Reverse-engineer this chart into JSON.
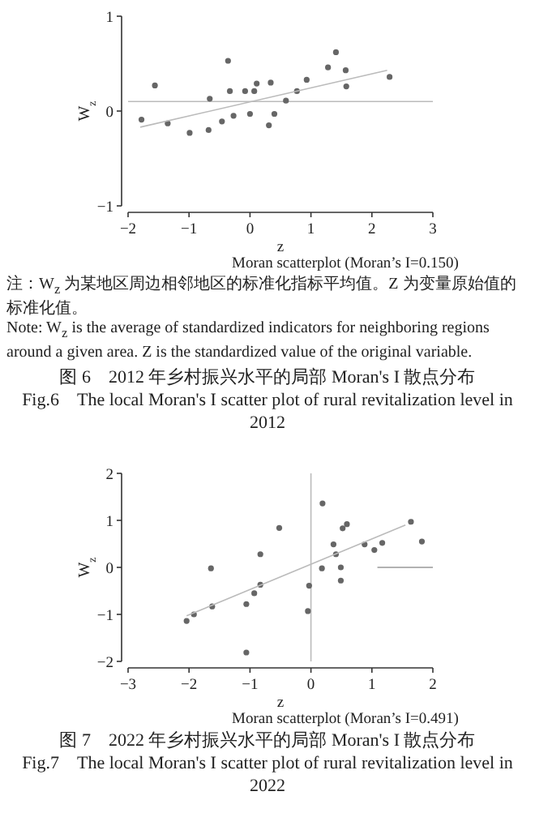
{
  "chart_data": [
    {
      "type": "scatter",
      "title": "图 6　2012 年乡村振兴水平的局部 Moran's I 散点分布",
      "subtitle": "Fig.6　The local Moran's I scatter plot of rural revitalization level in 2012",
      "xlabel": "z",
      "ylabel": "W$_{z}$",
      "xlim": [
        -2,
        3
      ],
      "ylim": [
        -1,
        1
      ],
      "xticks": [
        -2,
        -1,
        0,
        1,
        2,
        3
      ],
      "yticks": [
        -1,
        0,
        1
      ],
      "marker": "circle",
      "annotations": [
        "Moran scatterplot (Moran’s I=0.150)",
        "注：W$_{z}$ 为某地区周边相邻地区的标准化指标平均值。Z 为变量原始值的标准化值。",
        "Note: W$_{z}$ is the average of standardized indicators for neighboring regions around a given area. Z is the standardized value of the original variable."
      ],
      "ref_lines": [
        {
          "axis": "y",
          "value": 0.1,
          "color": "#bbbbbb"
        }
      ],
      "series": [
        {
          "color": "#666666",
          "x": [
            -1.78,
            -1.35,
            -0.99,
            -0.68,
            -0.46,
            -0.27,
            0.0,
            0.4,
            0.31,
            -1.56,
            -0.36,
            -0.66,
            -0.33,
            -0.08,
            0.07,
            0.11,
            0.34,
            0.59,
            0.77,
            0.93,
            1.41,
            1.28,
            1.57,
            1.58,
            2.29
          ],
          "values": [
            -0.09,
            -0.13,
            -0.23,
            -0.2,
            -0.11,
            -0.05,
            -0.03,
            -0.03,
            -0.15,
            0.27,
            0.53,
            0.13,
            0.21,
            0.21,
            0.21,
            0.29,
            0.3,
            0.11,
            0.21,
            0.33,
            0.62,
            0.46,
            0.43,
            0.26,
            0.36
          ]
        },
        {
          "type": "line",
          "marker": "none",
          "color": "#bbbbbb",
          "x": [
            -1.8,
            2.25
          ],
          "values": [
            -0.17,
            0.43
          ]
        }
      ]
    },
    {
      "type": "scatter",
      "title": "图 7　2022 年乡村振兴水平的局部 Moran's I 散点分布",
      "subtitle": "Fig.7　The local Moran's I scatter plot of rural revitalization level in 2022",
      "xlabel": "z",
      "ylabel": "W$_{z}$",
      "xlim": [
        -3,
        2
      ],
      "ylim": [
        -2,
        2
      ],
      "xticks": [
        -3,
        -2,
        -1,
        0,
        1,
        2
      ],
      "yticks": [
        -2,
        -1,
        0,
        1,
        2
      ],
      "marker": "circle",
      "annotations": [
        "Moran scatterplot (Moran’s I=0.491)"
      ],
      "ref_lines": [
        {
          "axis": "x",
          "value": 0,
          "color": "#bbbbbb"
        }
      ],
      "series": [
        {
          "color": "#666666",
          "x": [
            0.19,
            -0.52,
            0.59,
            0.52,
            1.64,
            1.82,
            0.37,
            0.88,
            1.17,
            1.04,
            0.41,
            -0.83,
            -1.64,
            0.18,
            0.49,
            0.49,
            -0.03,
            -0.83,
            -0.93,
            -1.06,
            -1.62,
            -1.92,
            -2.04,
            -0.05,
            -1.06
          ],
          "values": [
            1.36,
            0.84,
            0.92,
            0.83,
            0.97,
            0.55,
            0.49,
            0.49,
            0.52,
            0.37,
            0.28,
            0.28,
            -0.02,
            -0.02,
            0.0,
            -0.28,
            -0.39,
            -0.37,
            -0.55,
            -0.78,
            -0.83,
            -1.0,
            -1.14,
            -0.93,
            -1.81
          ]
        },
        {
          "type": "line",
          "marker": "none",
          "color": "#bbbbbb",
          "x": [
            -2.04,
            1.55
          ],
          "values": [
            -1.03,
            0.9
          ]
        },
        {
          "type": "line",
          "marker": "none",
          "color": "#999999",
          "x": [
            1.09,
            2
          ],
          "values": [
            0,
            0
          ]
        }
      ]
    }
  ]
}
